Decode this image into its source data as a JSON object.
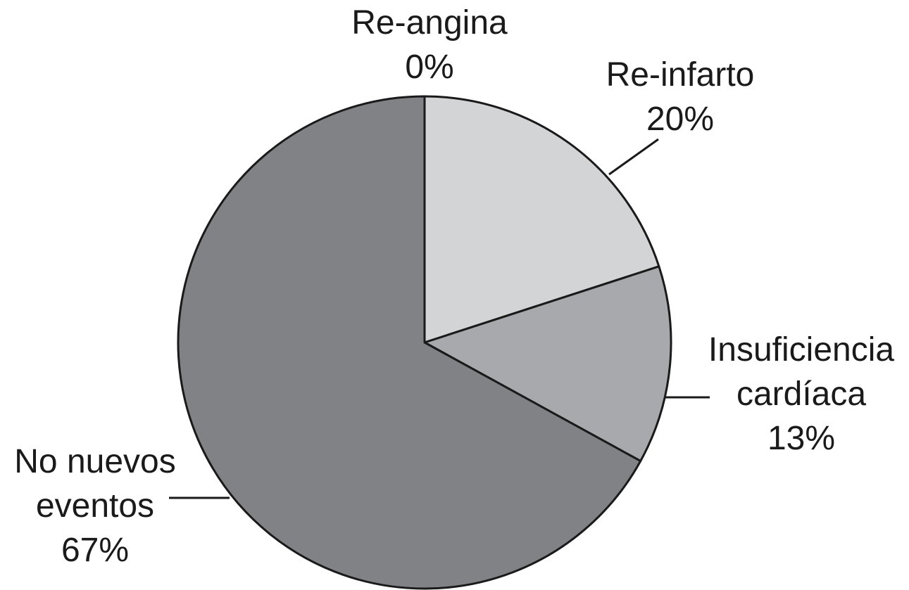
{
  "chart_data": {
    "type": "pie",
    "slices": [
      {
        "name": "Re-angina",
        "label_lines": [
          "Re-angina"
        ],
        "value": 0,
        "value_label": "0%",
        "color": "#d3d4d6"
      },
      {
        "name": "Re-infarto",
        "label_lines": [
          "Re-infarto"
        ],
        "value": 20,
        "value_label": "20%",
        "color": "#d3d4d6"
      },
      {
        "name": "Insuficiencia cardíaca",
        "label_lines": [
          "Insuficiencia",
          "cardíaca"
        ],
        "value": 13,
        "value_label": "13%",
        "color": "#a8a9ac"
      },
      {
        "name": "No nuevos eventos",
        "label_lines": [
          "No nuevos",
          "eventos"
        ],
        "value": 67,
        "value_label": "67%",
        "color": "#818286"
      }
    ],
    "start_angle": "12 o'clock",
    "direction": "clockwise",
    "legend": "none",
    "outline_color": "#1a1a1a"
  }
}
